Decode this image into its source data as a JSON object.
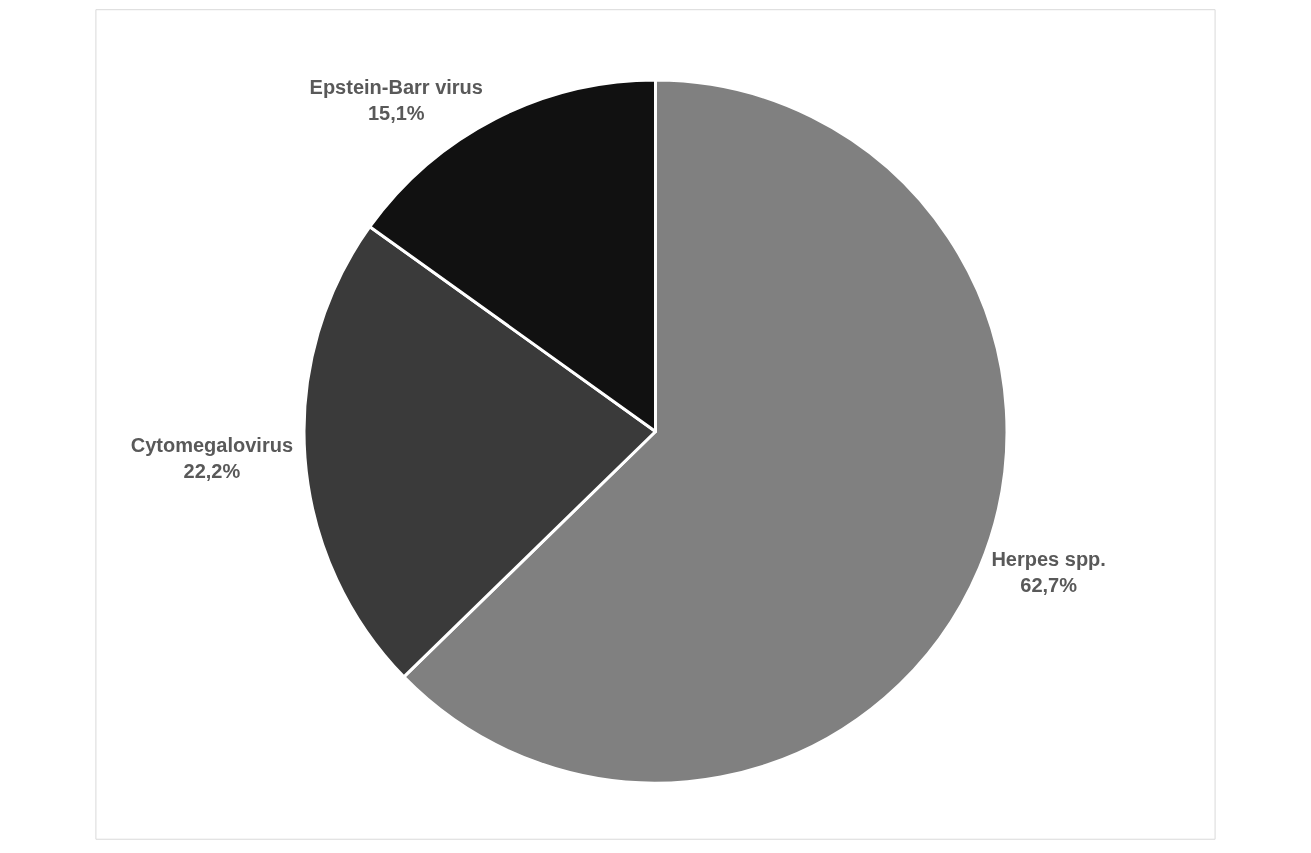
{
  "chart_data": {
    "type": "pie",
    "categories": [
      "Herpes spp.",
      "Cytomegalovirus",
      "Epstein-Barr virus"
    ],
    "values": [
      62.7,
      22.2,
      15.1
    ],
    "value_labels": [
      "62,7%",
      "22,2%",
      "15,1%"
    ],
    "colors": [
      "#808080",
      "#3a3a3a",
      "#111111"
    ],
    "legend": false
  }
}
